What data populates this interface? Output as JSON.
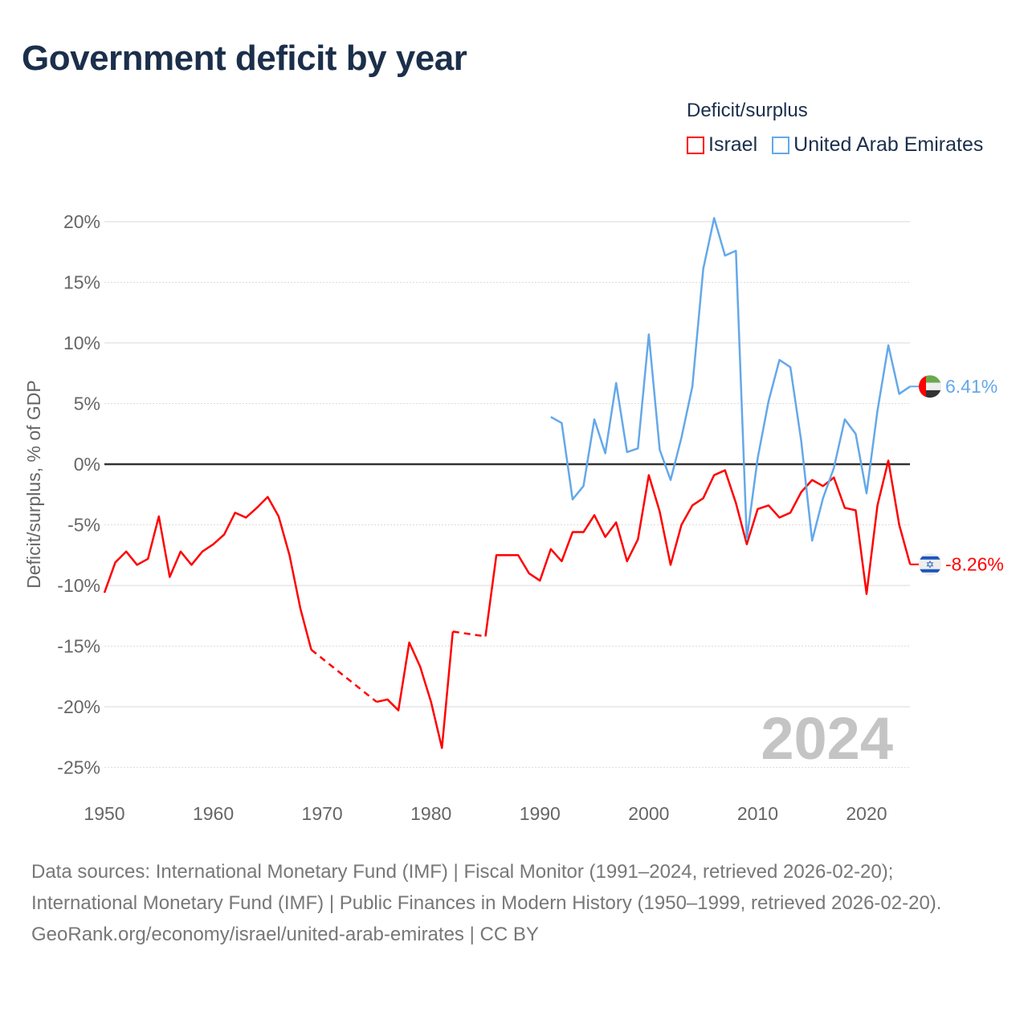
{
  "title": "Government deficit by year",
  "legend": {
    "title": "Deficit/surplus",
    "items": [
      {
        "label": "Israel",
        "color": "#ff0000"
      },
      {
        "label": "United Arab Emirates",
        "color": "#64a8ea"
      }
    ]
  },
  "chart_data": {
    "type": "line",
    "title": "Government deficit by year",
    "xlabel": "",
    "ylabel": "Deficit/surplus, % of GDP",
    "xlim": [
      1950,
      2024
    ],
    "ylim": [
      -25,
      20
    ],
    "x_ticks": [
      "1950",
      "1960",
      "1970",
      "1980",
      "1990",
      "2000",
      "2010",
      "2020"
    ],
    "y_ticks": [
      {
        "value": 20,
        "label": "20%"
      },
      {
        "value": 15,
        "label": "15%"
      },
      {
        "value": 10,
        "label": "10%"
      },
      {
        "value": 5,
        "label": "5%"
      },
      {
        "value": 0,
        "label": "0%"
      },
      {
        "value": -5,
        "label": "-5%"
      },
      {
        "value": -10,
        "label": "-10%"
      },
      {
        "value": -15,
        "label": "-15%"
      },
      {
        "value": -20,
        "label": "-20%"
      },
      {
        "value": -25,
        "label": "-25%"
      }
    ],
    "grid": true,
    "legend_position": "top-right",
    "year_watermark": "2024",
    "x_start": 1950,
    "series": [
      {
        "name": "Israel",
        "color": "#ff0000",
        "end_label": "-8.26%",
        "flag": "israel",
        "values": [
          -10.6,
          -8.1,
          -7.2,
          -8.3,
          -7.8,
          -4.3,
          -9.3,
          -7.2,
          -8.3,
          -7.2,
          -6.6,
          -5.8,
          -4.0,
          -4.4,
          -3.6,
          -2.7,
          -4.3,
          -7.5,
          -11.9,
          -15.3,
          null,
          null,
          null,
          null,
          null,
          -19.6,
          -19.4,
          -20.3,
          -14.7,
          -16.7,
          -19.6,
          -23.4,
          -13.8,
          null,
          null,
          -14.2,
          -7.5,
          -7.5,
          -7.5,
          -9.0,
          -9.6,
          -7.0,
          -8.0,
          -5.6,
          -5.6,
          -4.2,
          -6.0,
          -4.8,
          -8.0,
          -6.2,
          -0.9,
          -3.9,
          -8.3,
          -5.0,
          -3.4,
          -2.8,
          -0.9,
          -0.5,
          -3.2,
          -6.6,
          -3.7,
          -3.4,
          -4.4,
          -4.0,
          -2.3,
          -1.3,
          -1.8,
          -1.1,
          -3.6,
          -3.8,
          -10.7,
          -3.4,
          0.3,
          -5.0,
          -8.26
        ]
      },
      {
        "name": "United Arab Emirates",
        "color": "#64a8ea",
        "end_label": "6.41%",
        "flag": "uae",
        "values": [
          null,
          null,
          null,
          null,
          null,
          null,
          null,
          null,
          null,
          null,
          null,
          null,
          null,
          null,
          null,
          null,
          null,
          null,
          null,
          null,
          null,
          null,
          null,
          null,
          null,
          null,
          null,
          null,
          null,
          null,
          null,
          null,
          null,
          null,
          null,
          null,
          null,
          null,
          null,
          null,
          null,
          3.9,
          3.4,
          -2.9,
          -1.8,
          3.7,
          0.9,
          6.7,
          1.0,
          1.3,
          10.7,
          1.2,
          -1.3,
          2.2,
          6.4,
          16.1,
          20.3,
          17.2,
          17.6,
          -6.2,
          0.5,
          5.2,
          8.6,
          8.0,
          1.9,
          -6.3,
          -2.8,
          -0.3,
          3.7,
          2.5,
          -2.4,
          4.4,
          9.8,
          5.8,
          6.41
        ]
      }
    ]
  },
  "footer": {
    "sources": "Data sources: International Monetary Fund (IMF) | Fiscal Monitor (1991–2024, retrieved 2026-02-20); International Monetary Fund (IMF) | Public Finances in Modern History (1950–1999, retrieved 2026-02-20).",
    "link": "GeoRank.org/economy/israel/united-arab-emirates | CC BY"
  }
}
